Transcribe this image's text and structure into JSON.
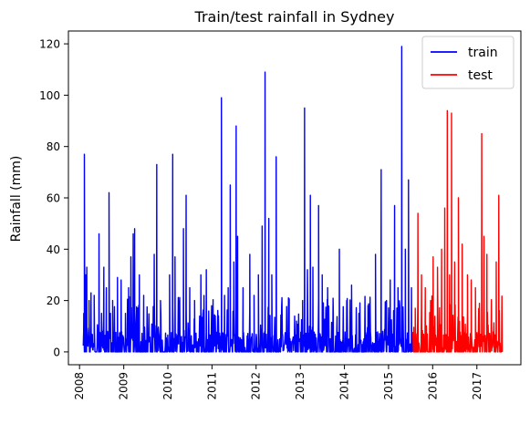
{
  "chart_data": {
    "type": "line",
    "title": "Train/test rainfall in Sydney",
    "xlabel": "",
    "ylabel": "Rainfall (mm)",
    "xlim": [
      "2007-10-01",
      "2017-12-31"
    ],
    "ylim": [
      -5,
      125
    ],
    "x_ticks": [
      "2008",
      "2009",
      "2010",
      "2011",
      "2012",
      "2013",
      "2014",
      "2015",
      "2016",
      "2017"
    ],
    "y_ticks": [
      0,
      20,
      40,
      60,
      80,
      100,
      120
    ],
    "legend_position": "top-right",
    "series": [
      {
        "name": "train",
        "color": "#0000ff",
        "start": "2008-02-01",
        "end": "2015-07-20",
        "points": [
          [
            "2008-02-05",
            15
          ],
          [
            "2008-02-10",
            77
          ],
          [
            "2008-02-20",
            30
          ],
          [
            "2008-03-01",
            33
          ],
          [
            "2008-03-20",
            20
          ],
          [
            "2008-04-05",
            23
          ],
          [
            "2008-05-01",
            22
          ],
          [
            "2008-06-10",
            46
          ],
          [
            "2008-07-01",
            15
          ],
          [
            "2008-07-20",
            33
          ],
          [
            "2008-08-10",
            25
          ],
          [
            "2008-09-01",
            62
          ],
          [
            "2008-10-01",
            20
          ],
          [
            "2008-11-10",
            29
          ],
          [
            "2008-12-10",
            28
          ],
          [
            "2009-01-15",
            15
          ],
          [
            "2009-02-10",
            25
          ],
          [
            "2009-03-01",
            37
          ],
          [
            "2009-03-20",
            46
          ],
          [
            "2009-04-01",
            48
          ],
          [
            "2009-05-10",
            30
          ],
          [
            "2009-06-15",
            22
          ],
          [
            "2009-08-01",
            5
          ],
          [
            "2009-09-10",
            38
          ],
          [
            "2009-10-01",
            73
          ],
          [
            "2009-11-01",
            20
          ],
          [
            "2010-01-15",
            30
          ],
          [
            "2010-02-10",
            77
          ],
          [
            "2010-03-01",
            37
          ],
          [
            "2010-04-01",
            20
          ],
          [
            "2010-05-10",
            48
          ],
          [
            "2010-06-01",
            61
          ],
          [
            "2010-07-01",
            25
          ],
          [
            "2010-08-10",
            20
          ],
          [
            "2010-10-01",
            30
          ],
          [
            "2010-11-15",
            32
          ],
          [
            "2011-01-10",
            18
          ],
          [
            "2011-03-20",
            99
          ],
          [
            "2011-04-15",
            22
          ],
          [
            "2011-05-15",
            25
          ],
          [
            "2011-06-01",
            65
          ],
          [
            "2011-07-01",
            35
          ],
          [
            "2011-07-20",
            88
          ],
          [
            "2011-08-01",
            45
          ],
          [
            "2011-09-15",
            25
          ],
          [
            "2011-11-10",
            38
          ],
          [
            "2011-12-15",
            22
          ],
          [
            "2012-01-20",
            30
          ],
          [
            "2012-02-20",
            49
          ],
          [
            "2012-03-15",
            109
          ],
          [
            "2012-04-15",
            52
          ],
          [
            "2012-05-10",
            30
          ],
          [
            "2012-06-15",
            76
          ],
          [
            "2012-08-01",
            20
          ],
          [
            "2012-10-01",
            8
          ],
          [
            "2012-12-01",
            12
          ],
          [
            "2013-01-20",
            20
          ],
          [
            "2013-02-05",
            95
          ],
          [
            "2013-03-01",
            32
          ],
          [
            "2013-03-25",
            61
          ],
          [
            "2013-04-15",
            33
          ],
          [
            "2013-06-01",
            57
          ],
          [
            "2013-07-01",
            30
          ],
          [
            "2013-08-15",
            25
          ],
          [
            "2013-10-01",
            15
          ],
          [
            "2013-11-20",
            40
          ],
          [
            "2014-01-20",
            20
          ],
          [
            "2014-03-01",
            26
          ],
          [
            "2014-05-01",
            15
          ],
          [
            "2014-07-15",
            18
          ],
          [
            "2014-09-15",
            38
          ],
          [
            "2014-11-01",
            71
          ],
          [
            "2014-12-15",
            20
          ],
          [
            "2015-01-15",
            28
          ],
          [
            "2015-02-20",
            57
          ],
          [
            "2015-03-20",
            25
          ],
          [
            "2015-04-20",
            119
          ],
          [
            "2015-05-20",
            40
          ],
          [
            "2015-06-15",
            67
          ],
          [
            "2015-07-10",
            25
          ]
        ]
      },
      {
        "name": "test",
        "color": "#ff0000",
        "start": "2015-07-20",
        "end": "2017-07-31",
        "points": [
          [
            "2015-08-10",
            17
          ],
          [
            "2015-09-01",
            54
          ],
          [
            "2015-10-01",
            30
          ],
          [
            "2015-11-01",
            25
          ],
          [
            "2015-12-15",
            20
          ],
          [
            "2016-01-05",
            37
          ],
          [
            "2016-02-10",
            33
          ],
          [
            "2016-03-15",
            40
          ],
          [
            "2016-04-10",
            56
          ],
          [
            "2016-05-01",
            94
          ],
          [
            "2016-05-20",
            30
          ],
          [
            "2016-06-05",
            93
          ],
          [
            "2016-07-01",
            35
          ],
          [
            "2016-08-01",
            60
          ],
          [
            "2016-09-01",
            42
          ],
          [
            "2016-10-15",
            30
          ],
          [
            "2016-11-15",
            28
          ],
          [
            "2016-12-20",
            25
          ],
          [
            "2017-02-10",
            85
          ],
          [
            "2017-03-01",
            45
          ],
          [
            "2017-03-25",
            38
          ],
          [
            "2017-05-01",
            20
          ],
          [
            "2017-06-10",
            35
          ],
          [
            "2017-07-01",
            61
          ]
        ]
      }
    ]
  }
}
